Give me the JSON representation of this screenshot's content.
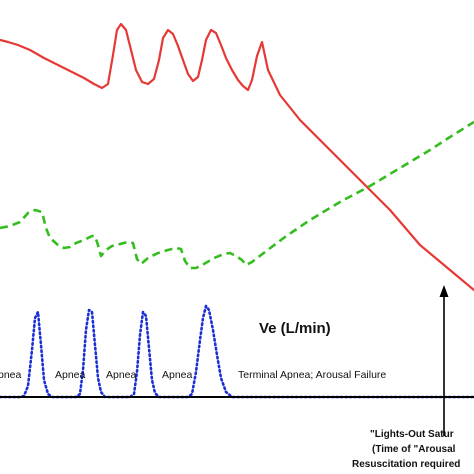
{
  "chart_data": {
    "type": "line",
    "series": [
      {
        "color": "#e53935",
        "dash": "solid",
        "points": [
          [
            0,
            40
          ],
          [
            8,
            42
          ],
          [
            18,
            45
          ],
          [
            30,
            50
          ],
          [
            44,
            58
          ],
          [
            58,
            65
          ],
          [
            72,
            72
          ],
          [
            84,
            78
          ],
          [
            94,
            84
          ],
          [
            102,
            88
          ],
          [
            108,
            84
          ],
          [
            113,
            55
          ],
          [
            117,
            30
          ],
          [
            121,
            24
          ],
          [
            126,
            30
          ],
          [
            131,
            50
          ],
          [
            136,
            70
          ],
          [
            142,
            82
          ],
          [
            148,
            84
          ],
          [
            154,
            79
          ],
          [
            159,
            60
          ],
          [
            163,
            38
          ],
          [
            168,
            30
          ],
          [
            173,
            34
          ],
          [
            178,
            46
          ],
          [
            183,
            60
          ],
          [
            188,
            74
          ],
          [
            193,
            81
          ],
          [
            198,
            77
          ],
          [
            202,
            60
          ],
          [
            206,
            40
          ],
          [
            211,
            30
          ],
          [
            216,
            33
          ],
          [
            221,
            45
          ],
          [
            226,
            58
          ],
          [
            232,
            70
          ],
          [
            238,
            80
          ],
          [
            243,
            86
          ],
          [
            248,
            90
          ],
          [
            252,
            80
          ],
          [
            257,
            56
          ],
          [
            262,
            42
          ],
          [
            268,
            70
          ],
          [
            280,
            95
          ],
          [
            300,
            120
          ],
          [
            330,
            150
          ],
          [
            360,
            180
          ],
          [
            390,
            210
          ],
          [
            420,
            245
          ],
          [
            450,
            270
          ],
          [
            474,
            290
          ]
        ]
      },
      {
        "color": "#35bd1f",
        "dash": "dashed",
        "points": [
          [
            0,
            228
          ],
          [
            10,
            226
          ],
          [
            20,
            222
          ],
          [
            28,
            213
          ],
          [
            35,
            210
          ],
          [
            42,
            212
          ],
          [
            46,
            228
          ],
          [
            50,
            238
          ],
          [
            58,
            245
          ],
          [
            64,
            248
          ],
          [
            70,
            247
          ],
          [
            76,
            243
          ],
          [
            84,
            240
          ],
          [
            92,
            236
          ],
          [
            95,
            236
          ],
          [
            98,
            245
          ],
          [
            101,
            256
          ],
          [
            106,
            250
          ],
          [
            112,
            246
          ],
          [
            120,
            244
          ],
          [
            128,
            242
          ],
          [
            133,
            243
          ],
          [
            137,
            259
          ],
          [
            141,
            264
          ],
          [
            148,
            258
          ],
          [
            158,
            253
          ],
          [
            168,
            250
          ],
          [
            176,
            248
          ],
          [
            181,
            249
          ],
          [
            185,
            261
          ],
          [
            190,
            268
          ],
          [
            196,
            268
          ],
          [
            204,
            264
          ],
          [
            214,
            258
          ],
          [
            224,
            254
          ],
          [
            230,
            253
          ],
          [
            236,
            256
          ],
          [
            242,
            260
          ],
          [
            246,
            265
          ],
          [
            252,
            262
          ],
          [
            265,
            252
          ],
          [
            285,
            237
          ],
          [
            310,
            220
          ],
          [
            340,
            202
          ],
          [
            370,
            186
          ],
          [
            400,
            168
          ],
          [
            430,
            150
          ],
          [
            450,
            137
          ],
          [
            474,
            122
          ]
        ]
      },
      {
        "color": "#1a2fd6",
        "dash": "dotted",
        "points": [
          [
            0,
            397
          ],
          [
            20,
            397
          ],
          [
            24,
            396
          ],
          [
            28,
            386
          ],
          [
            32,
            350
          ],
          [
            35,
            318
          ],
          [
            38,
            312
          ],
          [
            41,
            345
          ],
          [
            44,
            380
          ],
          [
            48,
            394
          ],
          [
            52,
            397
          ],
          [
            76,
            397
          ],
          [
            80,
            394
          ],
          [
            83,
            370
          ],
          [
            86,
            330
          ],
          [
            89,
            310
          ],
          [
            92,
            312
          ],
          [
            95,
            345
          ],
          [
            98,
            378
          ],
          [
            101,
            392
          ],
          [
            105,
            397
          ],
          [
            130,
            397
          ],
          [
            134,
            394
          ],
          [
            137,
            372
          ],
          [
            140,
            335
          ],
          [
            143,
            312
          ],
          [
            146,
            316
          ],
          [
            149,
            348
          ],
          [
            152,
            380
          ],
          [
            155,
            393
          ],
          [
            159,
            397
          ],
          [
            188,
            397
          ],
          [
            192,
            394
          ],
          [
            196,
            372
          ],
          [
            200,
            340
          ],
          [
            203,
            318
          ],
          [
            206,
            306
          ],
          [
            209,
            310
          ],
          [
            213,
            330
          ],
          [
            217,
            355
          ],
          [
            221,
            378
          ],
          [
            226,
            392
          ],
          [
            232,
            397
          ],
          [
            474,
            397
          ]
        ]
      }
    ],
    "annotations": {
      "ve_label": "Ve (L/min)",
      "phases": [
        "pnea",
        "Apnea",
        "Apnea",
        "Apnea",
        "Terminal Apnea; Arousal Failure"
      ],
      "note_lines": [
        "\"Lights-Out Satur",
        "(Time of \"Arousal",
        "Resuscitation required"
      ]
    }
  }
}
